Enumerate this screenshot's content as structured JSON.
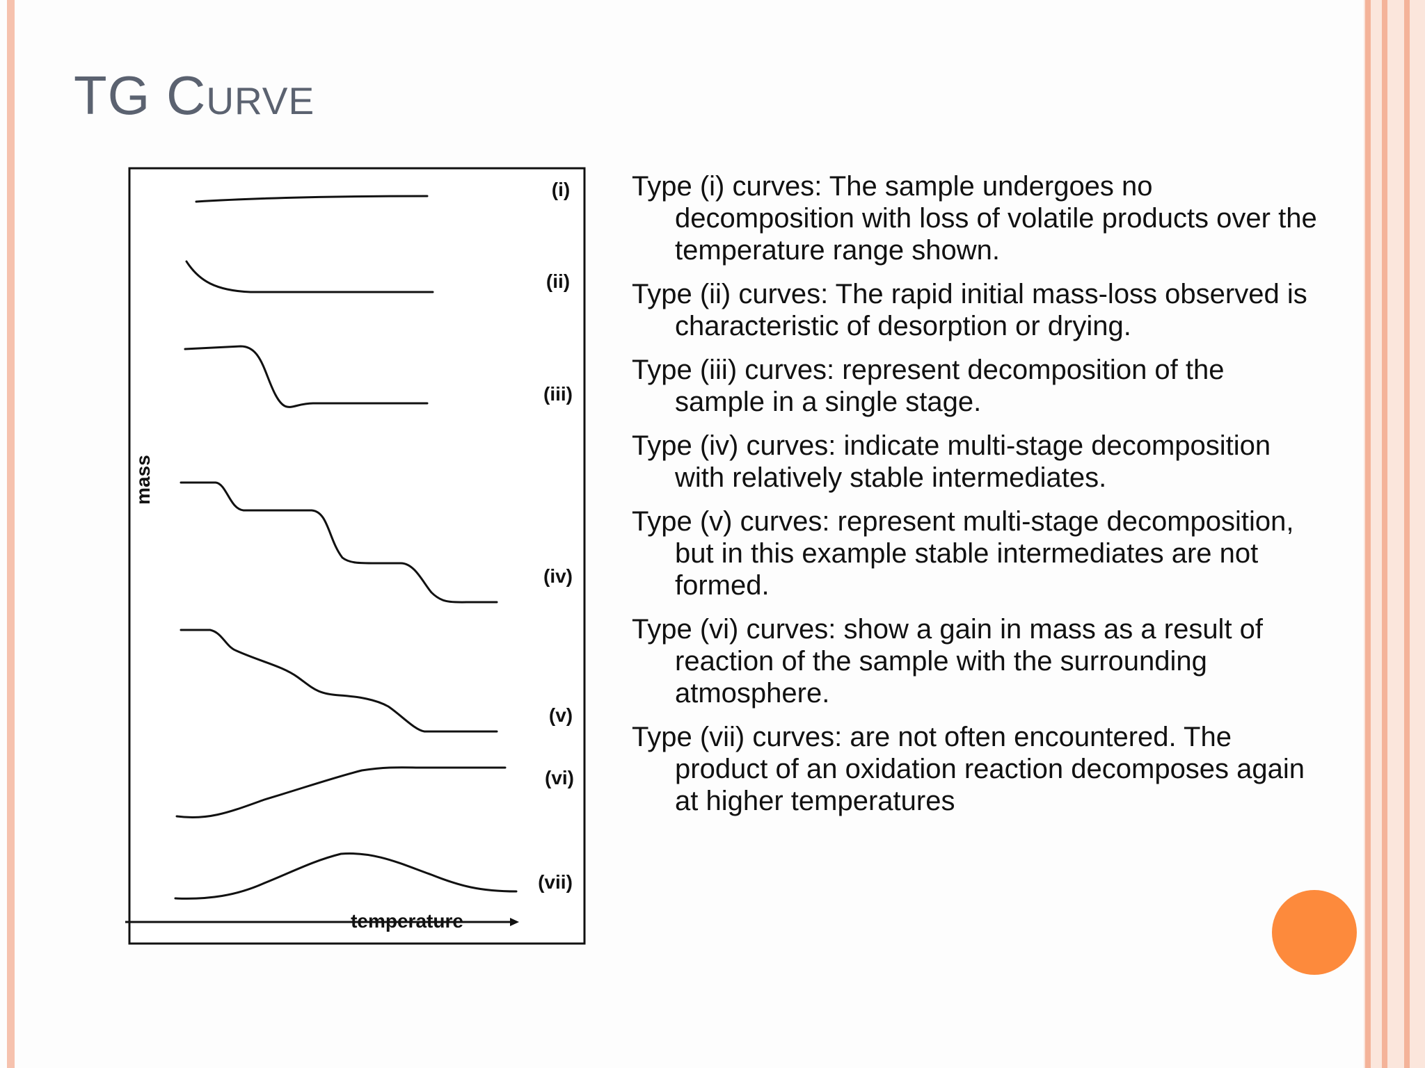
{
  "slide": {
    "title": "TG Curve",
    "accent_color": "#fd8a3c"
  },
  "figure": {
    "y_label": "mass",
    "x_label": "temperature",
    "curve_labels": [
      "(i)",
      "(ii)",
      "(iii)",
      "(iv)",
      "(v)",
      "(vi)",
      "(vii)"
    ]
  },
  "descriptions": [
    "Type (i) curves: The sample undergoes no decomposition with loss of volatile products over the temperature range shown.",
    "Type (ii) curves: The rapid initial mass-loss observed is characteristic of desorption or drying.",
    "Type (iii) curves: represent decomposition of the sample in a single stage.",
    "Type (iv) curves: indicate multi-stage decomposition with relatively stable intermediates.",
    "Type (v) curves: represent multi-stage decomposition, but in this example stable intermediates are not formed.",
    "Type (vi) curves: show a gain in mass as a result of reaction of the sample with the surrounding atmosphere.",
    "Type (vii) curves: are not often encountered. The product of an oxidation reaction decomposes again at higher temperatures"
  ]
}
